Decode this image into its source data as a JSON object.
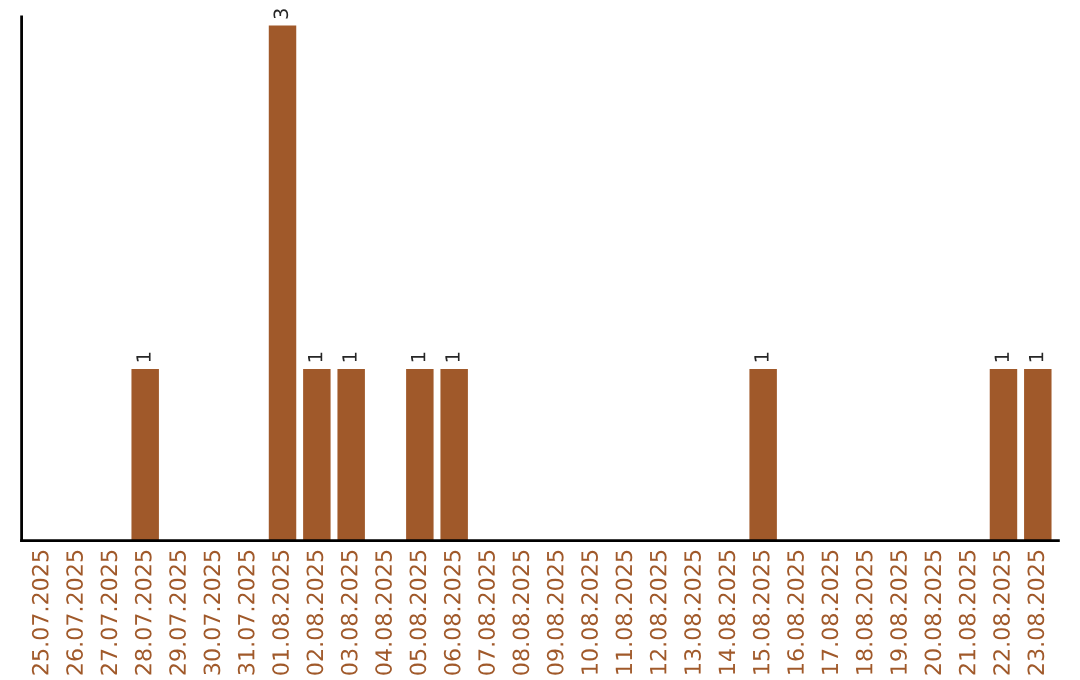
{
  "chart_data": {
    "type": "bar",
    "categories": [
      "25.07.2025",
      "26.07.2025",
      "27.07.2025",
      "28.07.2025",
      "29.07.2025",
      "30.07.2025",
      "31.07.2025",
      "01.08.2025",
      "02.08.2025",
      "03.08.2025",
      "04.08.2025",
      "05.08.2025",
      "06.08.2025",
      "07.08.2025",
      "08.08.2025",
      "09.08.2025",
      "10.08.2025",
      "11.08.2025",
      "12.08.2025",
      "13.08.2025",
      "14.08.2025",
      "15.08.2025",
      "16.08.2025",
      "17.08.2025",
      "18.08.2025",
      "19.08.2025",
      "20.08.2025",
      "21.08.2025",
      "22.08.2025",
      "23.08.2025"
    ],
    "values": [
      0,
      0,
      0,
      1,
      0,
      0,
      0,
      3,
      1,
      1,
      0,
      1,
      1,
      0,
      0,
      0,
      0,
      0,
      0,
      0,
      0,
      1,
      0,
      0,
      0,
      0,
      0,
      0,
      1,
      1
    ],
    "value_labels": [
      null,
      null,
      null,
      "1",
      null,
      null,
      null,
      "3",
      "1",
      "1",
      null,
      "1",
      "1",
      null,
      null,
      null,
      null,
      null,
      null,
      null,
      null,
      "1",
      null,
      null,
      null,
      null,
      null,
      null,
      "1",
      "1"
    ],
    "color": "#a0592a",
    "ylim": [
      0,
      3.05
    ],
    "tick_labels": "x",
    "grid": false
  }
}
